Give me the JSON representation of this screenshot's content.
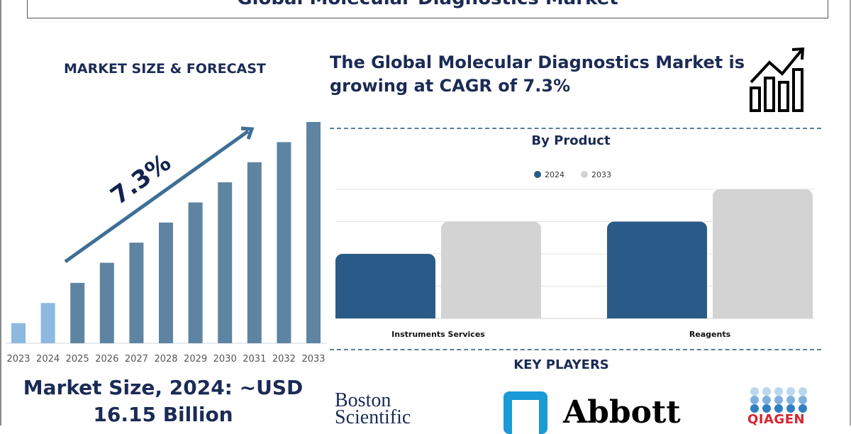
{
  "title": "Global Molecular Diagnostics Market",
  "left_panel": {
    "heading": "MARKET SIZE & FORECAST",
    "market_size_label": "Market Size, 2024: ~USD 16.15 Billion"
  },
  "headline": "The Global Molecular Diagnostics Market is growing at CAGR of 7.3%",
  "key_players": {
    "heading": "KEY PLAYERS",
    "companies": [
      "Boston Scientific",
      "Abbott",
      "QIAGEN"
    ]
  },
  "colors": {
    "navy": "#1b2b55",
    "forecast_bar": "#5f84a2",
    "historic_bar": "#8db8e0",
    "series_2024": "#2a5b88",
    "series_2033": "#d3d3d3"
  },
  "icons": [
    "growth-chart-icon"
  ],
  "chart_data": [
    {
      "type": "bar",
      "categories": [
        "2023",
        "2024",
        "2025",
        "2026",
        "2027",
        "2028",
        "2029",
        "2030",
        "2031",
        "2032",
        "2033"
      ],
      "values": [
        1,
        2,
        3,
        4,
        5,
        6,
        7,
        8,
        9,
        10,
        11
      ],
      "highlighted_historic": [
        "2023",
        "2024"
      ],
      "annotation": "7.3%",
      "title": "",
      "xlabel": "",
      "ylabel": ""
    },
    {
      "type": "bar",
      "title": "By Product",
      "categories": [
        "Instruments Services",
        "Reagents"
      ],
      "series": [
        {
          "name": "2024",
          "values": [
            2,
            3
          ]
        },
        {
          "name": "2033",
          "values": [
            3,
            4
          ]
        }
      ],
      "ylim": [
        0,
        4
      ],
      "grid": true,
      "legend": "top-center"
    }
  ]
}
